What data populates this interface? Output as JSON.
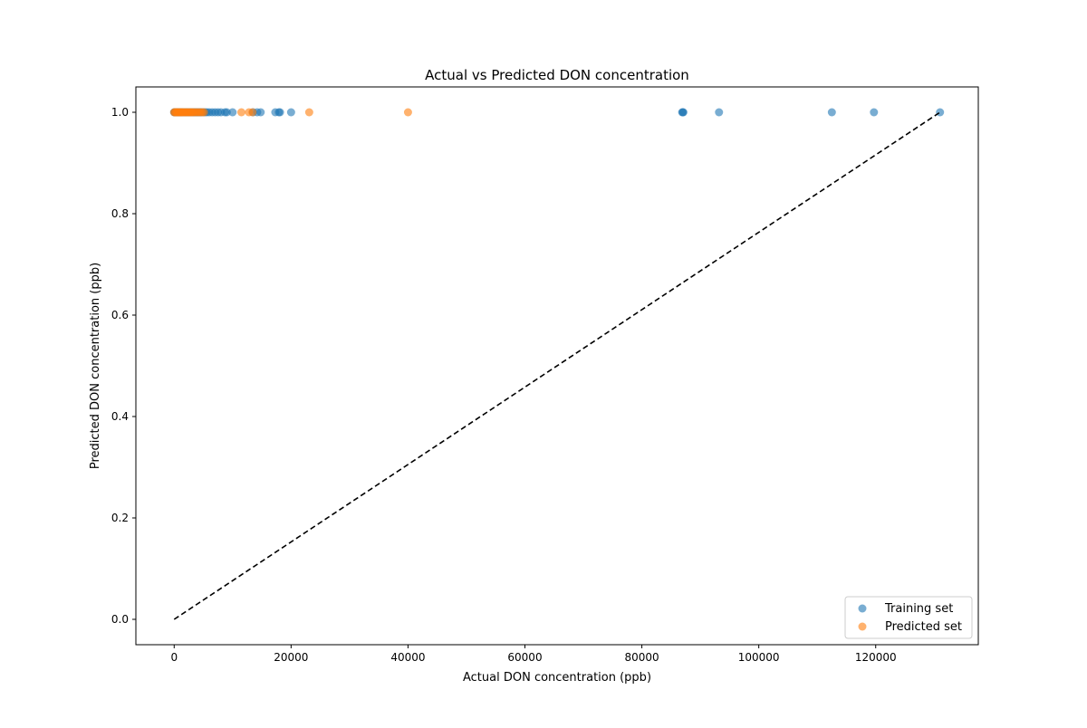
{
  "chart_data": {
    "type": "scatter",
    "title": "Actual vs Predicted DON concentration",
    "xlabel": "Actual DON concentration (ppb)",
    "ylabel": "Predicted DON concentration (ppb)",
    "xlim": [
      -6550,
      137550
    ],
    "ylim": [
      -0.05,
      1.05
    ],
    "xticks": [
      0,
      20000,
      40000,
      60000,
      80000,
      100000,
      120000
    ],
    "xtick_labels": [
      "0",
      "20000",
      "40000",
      "60000",
      "80000",
      "100000",
      "120000"
    ],
    "yticks": [
      0.0,
      0.2,
      0.4,
      0.6,
      0.8,
      1.0
    ],
    "ytick_labels": [
      "0.0",
      "0.2",
      "0.4",
      "0.6",
      "0.8",
      "1.0"
    ],
    "grid": false,
    "legend_position": "lower-right",
    "series": [
      {
        "name": "Training set",
        "color": "#1f77b4",
        "alpha": 0.6,
        "x": [
          0,
          100,
          200,
          300,
          400,
          500,
          600,
          700,
          800,
          900,
          1000,
          1100,
          1200,
          1300,
          1500,
          1700,
          1900,
          2100,
          2300,
          2500,
          2700,
          2900,
          3100,
          3300,
          3500,
          3700,
          3900,
          4100,
          4300,
          4500,
          4700,
          5000,
          5300,
          5600,
          6000,
          6500,
          7000,
          7500,
          8000,
          8700,
          9000,
          10000,
          13500,
          14200,
          14800,
          17300,
          17900,
          18100,
          20000,
          86900,
          87000,
          87100,
          93200,
          112500,
          119700,
          131000
        ],
        "y": [
          1,
          1,
          1,
          1,
          1,
          1,
          1,
          1,
          1,
          1,
          1,
          1,
          1,
          1,
          1,
          1,
          1,
          1,
          1,
          1,
          1,
          1,
          1,
          1,
          1,
          1,
          1,
          1,
          1,
          1,
          1,
          1,
          1,
          1,
          1,
          1,
          1,
          1,
          1,
          1,
          1,
          1,
          1,
          1,
          1,
          1,
          1,
          1,
          1,
          1,
          1,
          1,
          1,
          1,
          1,
          1
        ]
      },
      {
        "name": "Predicted set",
        "color": "#ff7f0e",
        "alpha": 0.6,
        "x": [
          0,
          150,
          300,
          450,
          600,
          750,
          900,
          1050,
          1200,
          1350,
          1500,
          1700,
          1900,
          2100,
          2300,
          2500,
          2700,
          2900,
          3100,
          3300,
          3600,
          3900,
          4200,
          4500,
          4800,
          5100,
          11500,
          12800,
          13400,
          23100,
          40000
        ],
        "y": [
          1,
          1,
          1,
          1,
          1,
          1,
          1,
          1,
          1,
          1,
          1,
          1,
          1,
          1,
          1,
          1,
          1,
          1,
          1,
          1,
          1,
          1,
          1,
          1,
          1,
          1,
          1,
          1,
          1,
          1,
          1
        ]
      }
    ],
    "reference_line": {
      "style": "dashed",
      "color": "#000000",
      "x": [
        0,
        131000
      ],
      "y": [
        0,
        1
      ]
    }
  }
}
